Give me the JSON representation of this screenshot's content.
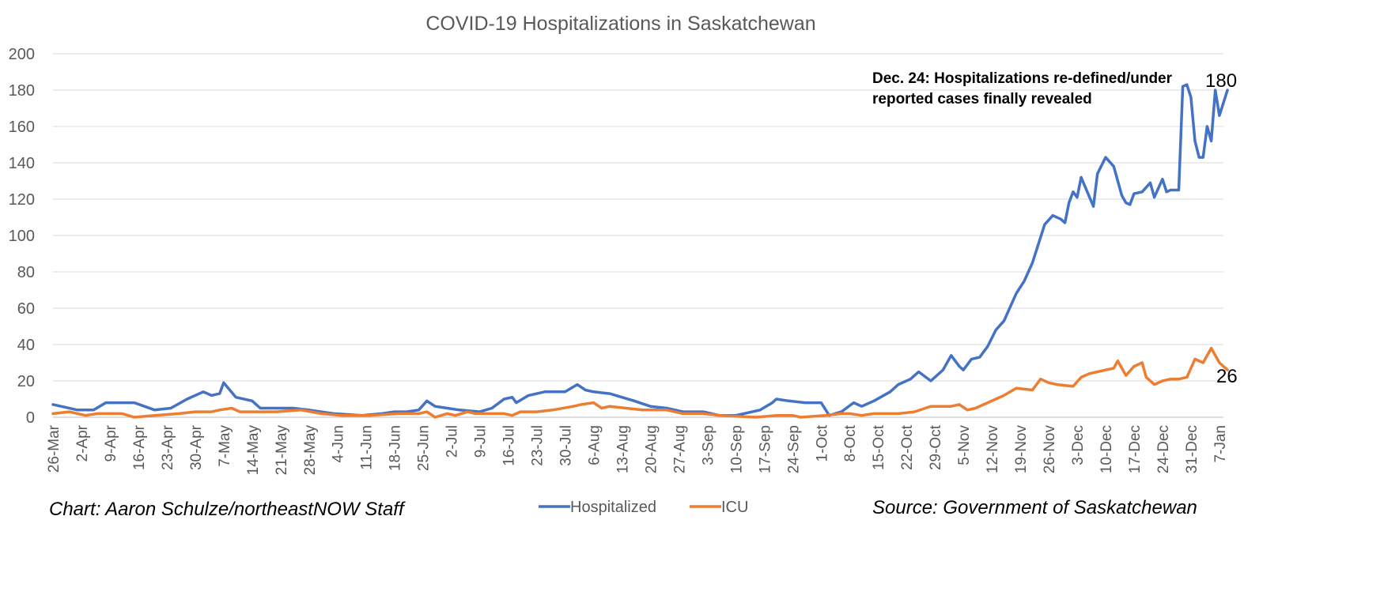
{
  "chart_data": {
    "type": "line",
    "title": "COVID-19 Hospitalizations in Saskatchewan",
    "ylim": [
      0,
      200
    ],
    "yticks": [
      0,
      20,
      40,
      60,
      80,
      100,
      120,
      140,
      160,
      180,
      200
    ],
    "x_start": "2020-03-26",
    "x_end": "2021-01-08",
    "x_tick_labels": [
      "26-Mar",
      "2-Apr",
      "9-Apr",
      "16-Apr",
      "23-Apr",
      "30-Apr",
      "7-May",
      "14-May",
      "21-May",
      "28-May",
      "4-Jun",
      "11-Jun",
      "18-Jun",
      "25-Jun",
      "2-Jul",
      "9-Jul",
      "16-Jul",
      "23-Jul",
      "30-Jul",
      "6-Aug",
      "13-Aug",
      "20-Aug",
      "27-Aug",
      "3-Sep",
      "10-Sep",
      "17-Sep",
      "24-Sep",
      "1-Oct",
      "8-Oct",
      "15-Oct",
      "22-Oct",
      "29-Oct",
      "5-Nov",
      "12-Nov",
      "19-Nov",
      "26-Nov",
      "3-Dec",
      "10-Dec",
      "17-Dec",
      "24-Dec",
      "31-Dec",
      "7-Jan"
    ],
    "grid": true,
    "legend": "bottom-center",
    "series": [
      {
        "name": "Hospitalized",
        "color": "#4472C4",
        "points": [
          [
            "2020-03-26",
            7
          ],
          [
            "2020-03-28",
            6
          ],
          [
            "2020-04-01",
            4
          ],
          [
            "2020-04-05",
            4
          ],
          [
            "2020-04-08",
            8
          ],
          [
            "2020-04-12",
            8
          ],
          [
            "2020-04-15",
            8
          ],
          [
            "2020-04-20",
            4
          ],
          [
            "2020-04-24",
            5
          ],
          [
            "2020-04-28",
            10
          ],
          [
            "2020-05-02",
            14
          ],
          [
            "2020-05-04",
            12
          ],
          [
            "2020-05-06",
            13
          ],
          [
            "2020-05-07",
            19
          ],
          [
            "2020-05-10",
            11
          ],
          [
            "2020-05-14",
            9
          ],
          [
            "2020-05-16",
            5
          ],
          [
            "2020-05-20",
            5
          ],
          [
            "2020-05-24",
            5
          ],
          [
            "2020-05-28",
            4
          ],
          [
            "2020-05-31",
            3
          ],
          [
            "2020-06-03",
            2
          ],
          [
            "2020-06-10",
            1
          ],
          [
            "2020-06-15",
            2
          ],
          [
            "2020-06-18",
            3
          ],
          [
            "2020-06-21",
            3
          ],
          [
            "2020-06-24",
            4
          ],
          [
            "2020-06-26",
            9
          ],
          [
            "2020-06-28",
            6
          ],
          [
            "2020-07-01",
            5
          ],
          [
            "2020-07-04",
            4
          ],
          [
            "2020-07-09",
            3
          ],
          [
            "2020-07-12",
            5
          ],
          [
            "2020-07-15",
            10
          ],
          [
            "2020-07-17",
            11
          ],
          [
            "2020-07-18",
            8
          ],
          [
            "2020-07-21",
            12
          ],
          [
            "2020-07-25",
            14
          ],
          [
            "2020-07-30",
            14
          ],
          [
            "2020-08-02",
            18
          ],
          [
            "2020-08-04",
            15
          ],
          [
            "2020-08-06",
            14
          ],
          [
            "2020-08-10",
            13
          ],
          [
            "2020-08-13",
            11
          ],
          [
            "2020-08-16",
            9
          ],
          [
            "2020-08-20",
            6
          ],
          [
            "2020-08-24",
            5
          ],
          [
            "2020-08-28",
            3
          ],
          [
            "2020-09-02",
            3
          ],
          [
            "2020-09-06",
            1
          ],
          [
            "2020-09-10",
            1
          ],
          [
            "2020-09-12",
            2
          ],
          [
            "2020-09-16",
            4
          ],
          [
            "2020-09-19",
            8
          ],
          [
            "2020-09-20",
            10
          ],
          [
            "2020-09-23",
            9
          ],
          [
            "2020-09-27",
            8
          ],
          [
            "2020-10-01",
            8
          ],
          [
            "2020-10-03",
            1
          ],
          [
            "2020-10-06",
            3
          ],
          [
            "2020-10-09",
            8
          ],
          [
            "2020-10-11",
            6
          ],
          [
            "2020-10-14",
            9
          ],
          [
            "2020-10-18",
            14
          ],
          [
            "2020-10-20",
            18
          ],
          [
            "2020-10-23",
            21
          ],
          [
            "2020-10-25",
            25
          ],
          [
            "2020-10-28",
            20
          ],
          [
            "2020-10-31",
            26
          ],
          [
            "2020-11-02",
            34
          ],
          [
            "2020-11-04",
            28
          ],
          [
            "2020-11-05",
            26
          ],
          [
            "2020-11-07",
            32
          ],
          [
            "2020-11-09",
            33
          ],
          [
            "2020-11-11",
            39
          ],
          [
            "2020-11-13",
            48
          ],
          [
            "2020-11-15",
            53
          ],
          [
            "2020-11-18",
            68
          ],
          [
            "2020-11-20",
            75
          ],
          [
            "2020-11-22",
            85
          ],
          [
            "2020-11-25",
            106
          ],
          [
            "2020-11-27",
            111
          ],
          [
            "2020-11-29",
            109
          ],
          [
            "2020-11-30",
            107
          ],
          [
            "2020-12-01",
            118
          ],
          [
            "2020-12-02",
            124
          ],
          [
            "2020-12-03",
            121
          ],
          [
            "2020-12-04",
            132
          ],
          [
            "2020-12-07",
            116
          ],
          [
            "2020-12-08",
            134
          ],
          [
            "2020-12-10",
            143
          ],
          [
            "2020-12-12",
            138
          ],
          [
            "2020-12-14",
            122
          ],
          [
            "2020-12-15",
            118
          ],
          [
            "2020-12-16",
            117
          ],
          [
            "2020-12-17",
            123
          ],
          [
            "2020-12-19",
            124
          ],
          [
            "2020-12-21",
            129
          ],
          [
            "2020-12-22",
            121
          ],
          [
            "2020-12-24",
            131
          ],
          [
            "2020-12-25",
            124
          ],
          [
            "2020-12-26",
            125
          ],
          [
            "2020-12-28",
            125
          ],
          [
            "2020-12-29",
            182
          ],
          [
            "2020-12-30",
            183
          ],
          [
            "2020-12-31",
            176
          ],
          [
            "2021-01-01",
            152
          ],
          [
            "2021-01-02",
            143
          ],
          [
            "2021-01-03",
            143
          ],
          [
            "2021-01-04",
            160
          ],
          [
            "2021-01-05",
            152
          ],
          [
            "2021-01-06",
            180
          ],
          [
            "2021-01-07",
            166
          ],
          [
            "2021-01-09",
            180
          ]
        ]
      },
      {
        "name": "ICU",
        "color": "#ED7D31",
        "points": [
          [
            "2020-03-26",
            2
          ],
          [
            "2020-03-30",
            3
          ],
          [
            "2020-04-03",
            1
          ],
          [
            "2020-04-06",
            2
          ],
          [
            "2020-04-12",
            2
          ],
          [
            "2020-04-15",
            0
          ],
          [
            "2020-04-20",
            1
          ],
          [
            "2020-04-26",
            2
          ],
          [
            "2020-04-30",
            3
          ],
          [
            "2020-05-04",
            3
          ],
          [
            "2020-05-06",
            4
          ],
          [
            "2020-05-09",
            5
          ],
          [
            "2020-05-11",
            3
          ],
          [
            "2020-05-20",
            3
          ],
          [
            "2020-05-26",
            4
          ],
          [
            "2020-05-31",
            2
          ],
          [
            "2020-06-05",
            1
          ],
          [
            "2020-06-12",
            1
          ],
          [
            "2020-06-19",
            2
          ],
          [
            "2020-06-24",
            2
          ],
          [
            "2020-06-26",
            3
          ],
          [
            "2020-06-28",
            0
          ],
          [
            "2020-07-01",
            2
          ],
          [
            "2020-07-03",
            1
          ],
          [
            "2020-07-06",
            3
          ],
          [
            "2020-07-08",
            2
          ],
          [
            "2020-07-12",
            2
          ],
          [
            "2020-07-15",
            2
          ],
          [
            "2020-07-17",
            1
          ],
          [
            "2020-07-19",
            3
          ],
          [
            "2020-07-23",
            3
          ],
          [
            "2020-07-27",
            4
          ],
          [
            "2020-08-01",
            6
          ],
          [
            "2020-08-03",
            7
          ],
          [
            "2020-08-06",
            8
          ],
          [
            "2020-08-08",
            5
          ],
          [
            "2020-08-10",
            6
          ],
          [
            "2020-08-14",
            5
          ],
          [
            "2020-08-18",
            4
          ],
          [
            "2020-08-24",
            4
          ],
          [
            "2020-08-28",
            2
          ],
          [
            "2020-09-02",
            2
          ],
          [
            "2020-09-06",
            1
          ],
          [
            "2020-09-15",
            0
          ],
          [
            "2020-09-20",
            1
          ],
          [
            "2020-09-24",
            1
          ],
          [
            "2020-09-26",
            0
          ],
          [
            "2020-10-02",
            1
          ],
          [
            "2020-10-06",
            2
          ],
          [
            "2020-10-08",
            2
          ],
          [
            "2020-10-11",
            1
          ],
          [
            "2020-10-14",
            2
          ],
          [
            "2020-10-20",
            2
          ],
          [
            "2020-10-24",
            3
          ],
          [
            "2020-10-28",
            6
          ],
          [
            "2020-11-02",
            6
          ],
          [
            "2020-11-04",
            7
          ],
          [
            "2020-11-06",
            4
          ],
          [
            "2020-11-08",
            5
          ],
          [
            "2020-11-10",
            7
          ],
          [
            "2020-11-13",
            10
          ],
          [
            "2020-11-15",
            12
          ],
          [
            "2020-11-18",
            16
          ],
          [
            "2020-11-22",
            15
          ],
          [
            "2020-11-24",
            21
          ],
          [
            "2020-11-26",
            19
          ],
          [
            "2020-11-28",
            18
          ],
          [
            "2020-12-02",
            17
          ],
          [
            "2020-12-04",
            22
          ],
          [
            "2020-12-06",
            24
          ],
          [
            "2020-12-08",
            25
          ],
          [
            "2020-12-10",
            26
          ],
          [
            "2020-12-12",
            27
          ],
          [
            "2020-12-13",
            31
          ],
          [
            "2020-12-15",
            23
          ],
          [
            "2020-12-17",
            28
          ],
          [
            "2020-12-19",
            30
          ],
          [
            "2020-12-20",
            22
          ],
          [
            "2020-12-22",
            18
          ],
          [
            "2020-12-24",
            20
          ],
          [
            "2020-12-26",
            21
          ],
          [
            "2020-12-28",
            21
          ],
          [
            "2020-12-30",
            22
          ],
          [
            "2021-01-01",
            32
          ],
          [
            "2021-01-03",
            30
          ],
          [
            "2021-01-05",
            38
          ],
          [
            "2021-01-07",
            30
          ],
          [
            "2021-01-09",
            26
          ]
        ]
      }
    ],
    "annotations": [
      {
        "text": [
          "Dec. 24: Hospitalizations re-defined/under",
          "reported cases finally revealed"
        ]
      },
      {
        "text": "180",
        "series": "Hospitalized",
        "value": 180
      },
      {
        "text": "26",
        "series": "ICU",
        "value": 26
      }
    ]
  },
  "footer": {
    "left": "Chart: Aaron Schulze/northeastNOW Staff",
    "right": "Source: Government of Saskatchewan"
  }
}
